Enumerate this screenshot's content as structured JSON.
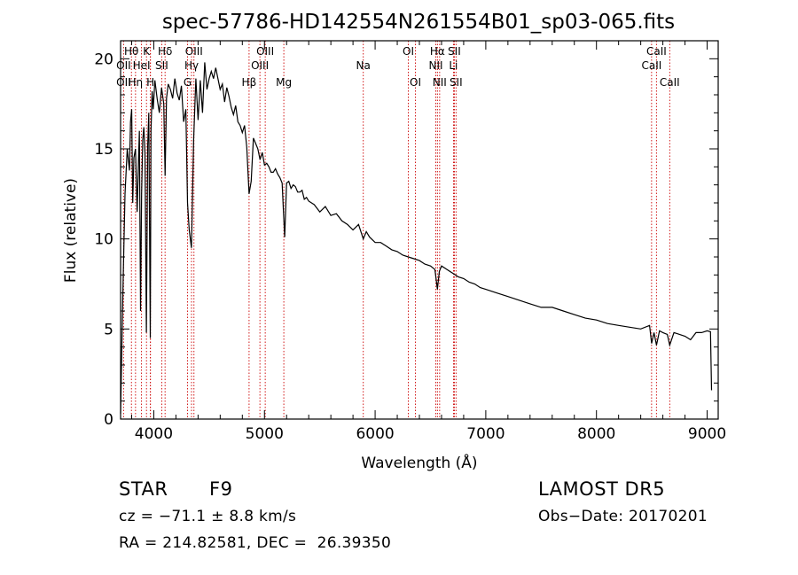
{
  "chart_data": {
    "type": "line",
    "title": "spec-57786-HD142554N261554B01_sp03-065.fits",
    "xlabel": "Wavelength (Å)",
    "ylabel": "Flux (relative)",
    "xlim": [
      3700,
      9100
    ],
    "ylim": [
      0,
      21
    ],
    "xticks": [
      4000,
      5000,
      6000,
      7000,
      8000,
      9000
    ],
    "yticks": [
      0,
      5,
      10,
      15,
      20
    ],
    "grid": false,
    "series": [
      {
        "x": [
          3700,
          3720,
          3740,
          3760,
          3780,
          3790,
          3800,
          3810,
          3820,
          3835,
          3850,
          3860,
          3870,
          3880,
          3890,
          3900,
          3910,
          3920,
          3933,
          3945,
          3955,
          3968,
          3975,
          3985,
          3995,
          4010,
          4030,
          4050,
          4070,
          4090,
          4102,
          4115,
          4130,
          4150,
          4170,
          4190,
          4210,
          4230,
          4250,
          4270,
          4290,
          4305,
          4320,
          4340,
          4360,
          4380,
          4400,
          4420,
          4440,
          4460,
          4480,
          4500,
          4520,
          4540,
          4560,
          4580,
          4600,
          4620,
          4640,
          4660,
          4680,
          4700,
          4720,
          4740,
          4760,
          4780,
          4800,
          4820,
          4840,
          4861,
          4880,
          4900,
          4920,
          4940,
          4960,
          4980,
          5000,
          5020,
          5040,
          5060,
          5080,
          5100,
          5120,
          5140,
          5160,
          5172,
          5183,
          5200,
          5220,
          5240,
          5260,
          5280,
          5300,
          5320,
          5340,
          5360,
          5380,
          5400,
          5450,
          5500,
          5550,
          5600,
          5650,
          5700,
          5750,
          5800,
          5850,
          5893,
          5920,
          5950,
          6000,
          6050,
          6100,
          6150,
          6200,
          6250,
          6300,
          6350,
          6400,
          6450,
          6500,
          6540,
          6563,
          6580,
          6600,
          6650,
          6700,
          6750,
          6800,
          6850,
          6900,
          6950,
          7000,
          7100,
          7200,
          7300,
          7400,
          7500,
          7600,
          7700,
          7800,
          7900,
          8000,
          8100,
          8200,
          8300,
          8400,
          8480,
          8498,
          8520,
          8542,
          8570,
          8600,
          8640,
          8662,
          8700,
          8750,
          8800,
          8850,
          8900,
          8950,
          9000,
          9030,
          9040
        ],
        "values": [
          0.3,
          6.8,
          12.5,
          15.0,
          13.8,
          16.5,
          17.2,
          12.0,
          14.5,
          15.0,
          11.5,
          14.0,
          16.0,
          6.0,
          12.5,
          15.5,
          16.2,
          14.8,
          4.8,
          15.2,
          17.0,
          4.5,
          16.0,
          18.2,
          17.2,
          18.8,
          17.8,
          17.0,
          18.4,
          17.5,
          13.5,
          17.8,
          18.6,
          18.3,
          17.8,
          18.9,
          18.1,
          17.7,
          18.5,
          16.5,
          17.2,
          12.0,
          10.5,
          9.5,
          15.5,
          18.9,
          16.6,
          18.8,
          17.0,
          19.8,
          18.3,
          18.9,
          19.3,
          18.9,
          19.5,
          18.9,
          18.3,
          18.6,
          17.6,
          18.4,
          17.9,
          17.3,
          16.9,
          17.4,
          16.5,
          16.3,
          15.9,
          16.3,
          15.1,
          12.5,
          13.2,
          15.6,
          15.3,
          15.0,
          14.4,
          14.8,
          14.1,
          14.2,
          14.0,
          13.7,
          13.7,
          13.9,
          13.6,
          13.4,
          13.1,
          11.5,
          10.1,
          13.1,
          13.2,
          12.8,
          13.0,
          12.9,
          12.6,
          12.6,
          12.7,
          12.2,
          12.3,
          12.1,
          11.9,
          11.5,
          11.8,
          11.3,
          11.4,
          11.0,
          10.8,
          10.5,
          10.8,
          10.0,
          10.4,
          10.1,
          9.8,
          9.8,
          9.6,
          9.4,
          9.3,
          9.1,
          9.0,
          8.9,
          8.8,
          8.6,
          8.5,
          8.3,
          7.2,
          8.2,
          8.5,
          8.3,
          8.1,
          7.9,
          7.8,
          7.6,
          7.5,
          7.3,
          7.2,
          7.0,
          6.8,
          6.6,
          6.4,
          6.2,
          6.2,
          6.0,
          5.8,
          5.6,
          5.5,
          5.3,
          5.2,
          5.1,
          5.0,
          5.2,
          4.2,
          4.8,
          4.1,
          4.9,
          4.8,
          4.7,
          4.1,
          4.8,
          4.7,
          4.6,
          4.4,
          4.8,
          4.8,
          4.9,
          4.85,
          1.6
        ]
      }
    ],
    "lines": [
      {
        "name": "CaII K",
        "wave": 3934
      },
      {
        "name": "CaII H",
        "wave": 3969
      },
      {
        "name": "OII",
        "wave": 3727
      },
      {
        "name": "Hη",
        "wave": 3835
      },
      {
        "name": "Hθ",
        "wave": 3798
      },
      {
        "name": "HeI",
        "wave": 3889
      },
      {
        "name": "SII",
        "wave": 4072
      },
      {
        "name": "Hδ",
        "wave": 4102
      },
      {
        "name": "Hε",
        "wave": 3970
      },
      {
        "name": "G",
        "wave": 4305
      },
      {
        "name": "Hγ",
        "wave": 4341
      },
      {
        "name": "OIII",
        "wave": 4363
      },
      {
        "name": "Hβ",
        "wave": 4861
      },
      {
        "name": "OIII",
        "wave": 4959
      },
      {
        "name": "OIII",
        "wave": 5007
      },
      {
        "name": "Mg",
        "wave": 5175
      },
      {
        "name": "Na",
        "wave": 5893
      },
      {
        "name": "OI",
        "wave": 6300
      },
      {
        "name": "OI",
        "wave": 6364
      },
      {
        "name": "NII",
        "wave": 6548
      },
      {
        "name": "Hα",
        "wave": 6563
      },
      {
        "name": "NII",
        "wave": 6583
      },
      {
        "name": "Li",
        "wave": 6708
      },
      {
        "name": "SII",
        "wave": 6716
      },
      {
        "name": "SII",
        "wave": 6731
      },
      {
        "name": "CaII",
        "wave": 8498
      },
      {
        "name": "CaII",
        "wave": 8542
      },
      {
        "name": "CaII",
        "wave": 8662
      }
    ],
    "line_labels": [
      {
        "text": "OII",
        "row": 3,
        "wave": 3727
      },
      {
        "text": "Hη",
        "row": 3,
        "wave": 3835
      },
      {
        "text": "Hθ",
        "row": 1,
        "wave": 3798
      },
      {
        "text": "OII",
        "row": 2,
        "wave": 3727
      },
      {
        "text": "HeI",
        "row": 2,
        "wave": 3889
      },
      {
        "text": "K",
        "row": 1,
        "wave": 3934
      },
      {
        "text": "H",
        "row": 3,
        "wave": 3969
      },
      {
        "text": "Hδ",
        "row": 1,
        "wave": 4102
      },
      {
        "text": "SII",
        "row": 2,
        "wave": 4072
      },
      {
        "text": "OIII",
        "row": 1,
        "wave": 4363
      },
      {
        "text": "Hγ",
        "row": 2,
        "wave": 4341
      },
      {
        "text": "G",
        "row": 3,
        "wave": 4305
      },
      {
        "text": "OIII",
        "row": 1,
        "wave": 5007
      },
      {
        "text": "OIII",
        "row": 2,
        "wave": 4959
      },
      {
        "text": "Hβ",
        "row": 3,
        "wave": 4861
      },
      {
        "text": "Mg",
        "row": 3,
        "wave": 5175
      },
      {
        "text": "Na",
        "row": 2,
        "wave": 5893
      },
      {
        "text": "OI",
        "row": 1,
        "wave": 6300
      },
      {
        "text": "OI",
        "row": 3,
        "wave": 6364
      },
      {
        "text": "Hα",
        "row": 1,
        "wave": 6563
      },
      {
        "text": "NII",
        "row": 2,
        "wave": 6548
      },
      {
        "text": "NII",
        "row": 3,
        "wave": 6583
      },
      {
        "text": "SII",
        "row": 1,
        "wave": 6716
      },
      {
        "text": "Li",
        "row": 2,
        "wave": 6708
      },
      {
        "text": "SII",
        "row": 3,
        "wave": 6731
      },
      {
        "text": "CaII",
        "row": 1,
        "wave": 8542
      },
      {
        "text": "CaII",
        "row": 2,
        "wave": 8498
      },
      {
        "text": "CaII",
        "row": 3,
        "wave": 8662
      }
    ],
    "line_color": "#cc0000"
  },
  "info": {
    "class": "STAR",
    "subclass": "F9",
    "survey": "LAMOST DR5",
    "redshift": "cz = −71.1 ± 8.8 km/s",
    "obs_date": "Obs−Date: 20170201",
    "coords": "RA = 214.82581, DEC =  26.39350"
  }
}
